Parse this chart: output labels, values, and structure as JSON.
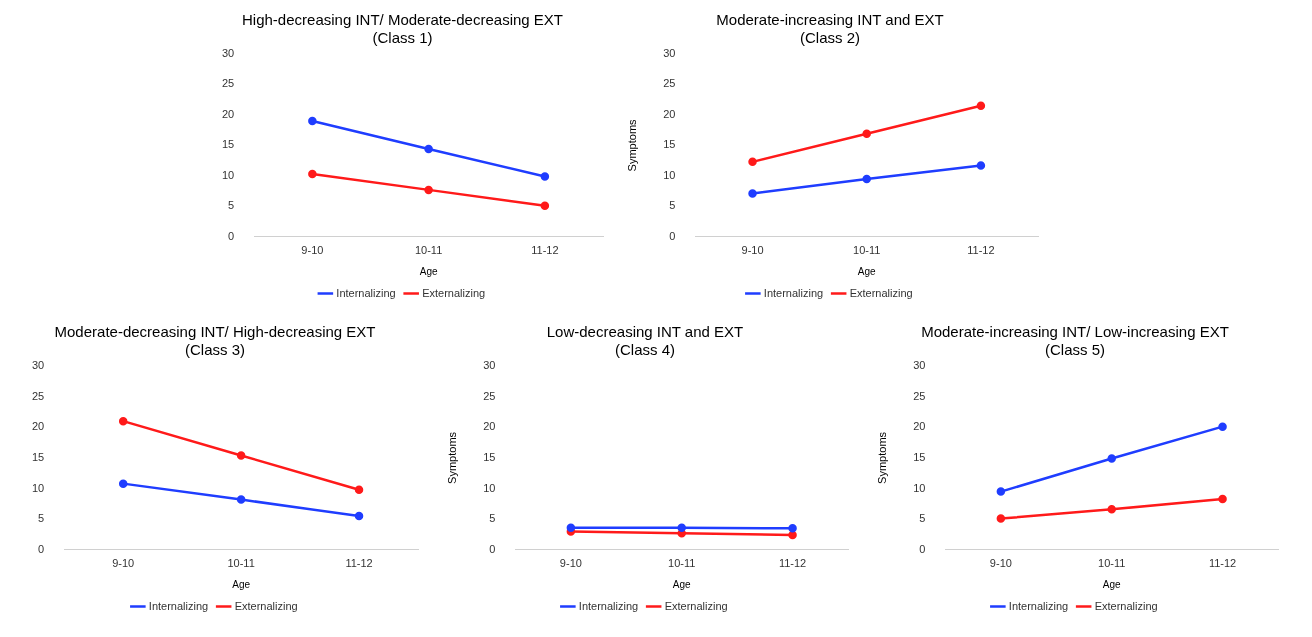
{
  "chart_data": [
    {
      "type": "line",
      "title": "High-decreasing INT/ Moderate-decreasing EXT\n(Class 1)",
      "xlabel": "Age",
      "categories": [
        "9-10",
        "10-11",
        "11-12"
      ],
      "ylim": [
        0,
        30
      ],
      "yticks": [
        0,
        5,
        10,
        15,
        20,
        25,
        30
      ],
      "grid": false,
      "legend": "bottom",
      "marker": "circle",
      "series": [
        {
          "name": "Internalizing",
          "color": "#1f3dff",
          "values": [
            19.0,
            14.4,
            9.9
          ]
        },
        {
          "name": "Externalizing",
          "color": "#ff1a1a",
          "values": [
            10.3,
            7.7,
            5.1
          ]
        }
      ]
    },
    {
      "type": "line",
      "title": "Moderate-increasing INT and EXT\n(Class 2)",
      "xlabel": "Age",
      "ylabel": "Symptoms",
      "categories": [
        "9-10",
        "10-11",
        "11-12"
      ],
      "ylim": [
        0,
        30
      ],
      "yticks": [
        0,
        5,
        10,
        15,
        20,
        25,
        30
      ],
      "grid": false,
      "legend": "bottom",
      "marker": "circle",
      "series": [
        {
          "name": "Internalizing",
          "color": "#1f3dff",
          "values": [
            7.1,
            9.5,
            11.7
          ]
        },
        {
          "name": "Externalizing",
          "color": "#ff1a1a",
          "values": [
            12.3,
            16.9,
            21.5
          ]
        }
      ]
    },
    {
      "type": "line",
      "title": "Moderate-decreasing INT/ High-decreasing EXT\n(Class 3)",
      "xlabel": "Age",
      "categories": [
        "9-10",
        "10-11",
        "11-12"
      ],
      "ylim": [
        0,
        30
      ],
      "yticks": [
        0,
        5,
        10,
        15,
        20,
        25,
        30
      ],
      "grid": false,
      "legend": "bottom",
      "marker": "circle",
      "series": [
        {
          "name": "Internalizing",
          "color": "#1f3dff",
          "values": [
            10.8,
            8.2,
            5.5
          ]
        },
        {
          "name": "Externalizing",
          "color": "#ff1a1a",
          "values": [
            21.0,
            15.4,
            9.8
          ]
        }
      ]
    },
    {
      "type": "line",
      "title": "Low-decreasing INT and EXT\n(Class 4)",
      "xlabel": "Age",
      "ylabel": "Symptoms",
      "categories": [
        "9-10",
        "10-11",
        "11-12"
      ],
      "ylim": [
        0,
        30
      ],
      "yticks": [
        0,
        5,
        10,
        15,
        20,
        25,
        30
      ],
      "grid": false,
      "legend": "bottom",
      "marker": "circle",
      "series": [
        {
          "name": "Internalizing",
          "color": "#1f3dff",
          "values": [
            3.6,
            3.6,
            3.5
          ]
        },
        {
          "name": "Externalizing",
          "color": "#ff1a1a",
          "values": [
            3.0,
            2.7,
            2.4
          ]
        }
      ]
    },
    {
      "type": "line",
      "title": "Moderate-increasing INT/ Low-increasing EXT\n(Class 5)",
      "xlabel": "Age",
      "ylabel": "Symptoms",
      "categories": [
        "9-10",
        "10-11",
        "11-12"
      ],
      "ylim": [
        0,
        30
      ],
      "yticks": [
        0,
        5,
        10,
        15,
        20,
        25,
        30
      ],
      "grid": false,
      "legend": "bottom",
      "marker": "circle",
      "series": [
        {
          "name": "Internalizing",
          "color": "#1f3dff",
          "values": [
            9.5,
            14.9,
            20.1
          ]
        },
        {
          "name": "Externalizing",
          "color": "#ff1a1a",
          "values": [
            5.1,
            6.6,
            8.3
          ]
        }
      ]
    }
  ]
}
